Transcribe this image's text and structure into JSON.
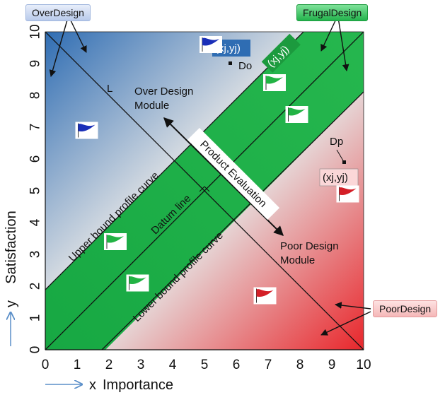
{
  "tags": {
    "over_design": "OverDesign",
    "frugal_design": "FrugalDesign",
    "poor_design": "PoorDesign"
  },
  "labels": {
    "line_l": "L",
    "do": "Do",
    "dp": "Dp",
    "point_top": "(xj,yj)",
    "point_band": "(xj,yj)",
    "point_right": "(xj,yj)",
    "over_module_line1": "Over Design",
    "over_module_line2": "Module",
    "poor_module_line1": "Poor Design",
    "poor_module_line2": "Module",
    "product_evaluation": "Product Evaluation",
    "datum_line": "Datum line",
    "upper_curve": "Upper bound profile curve",
    "lower_curve": "Lower bound profile curve"
  },
  "axes": {
    "x_var": "x",
    "x_label": "Importance",
    "y_var": "y",
    "y_label": "Satisfaction",
    "x_ticks": [
      "0",
      "1",
      "2",
      "3",
      "4",
      "5",
      "6",
      "7",
      "8",
      "9",
      "10"
    ],
    "y_ticks": [
      "0",
      "1",
      "2",
      "3",
      "4",
      "5",
      "6",
      "7",
      "8",
      "9",
      "10"
    ]
  },
  "colors": {
    "over": "#2f6db3",
    "frugal": "#1fb14a",
    "poor": "#e8262b",
    "neutral": "#e6e6e6",
    "axis_arrow": "#5b8fc9"
  },
  "flags": [
    {
      "x": 5.2,
      "y": 9.6,
      "color": "blue"
    },
    {
      "x": 1.3,
      "y": 6.9,
      "color": "blue"
    },
    {
      "x": 7.2,
      "y": 8.4,
      "color": "green"
    },
    {
      "x": 7.9,
      "y": 7.4,
      "color": "green"
    },
    {
      "x": 2.2,
      "y": 3.4,
      "color": "green"
    },
    {
      "x": 2.9,
      "y": 2.1,
      "color": "green"
    },
    {
      "x": 6.9,
      "y": 1.7,
      "color": "red"
    },
    {
      "x": 9.5,
      "y": 4.9,
      "color": "red"
    }
  ]
}
